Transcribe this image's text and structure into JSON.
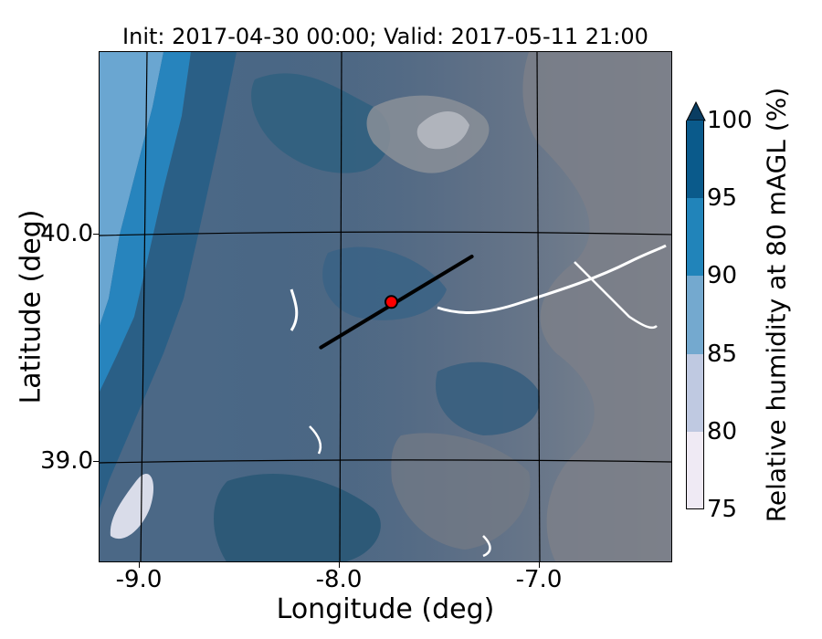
{
  "title": "Init: 2017-04-30 00:00; Valid: 2017-05-11 21:00",
  "axes": {
    "xlabel": "Longitude (deg)",
    "ylabel": "Latitude (deg)",
    "xticks": [
      "-9.0",
      "-8.0",
      "-7.0"
    ],
    "yticks": [
      "40.0",
      "39.0"
    ],
    "xlim": [
      -9.2,
      -6.35
    ],
    "ylim": [
      38.55,
      40.8
    ]
  },
  "colorbar": {
    "label": "Relative humidity at 80 mAGL (%)",
    "ticks": [
      "100",
      "95",
      "90",
      "85",
      "80",
      "75"
    ],
    "levels": [
      75,
      80,
      85,
      90,
      95,
      100
    ],
    "colors": [
      "#efeaf4",
      "#bfc9e1",
      "#74a9cf",
      "#2184ba",
      "#0a5a8b",
      "#0a3d62"
    ],
    "extend": "max"
  },
  "markers": {
    "point": {
      "lon": -7.75,
      "lat": 39.7,
      "color": "#ff0000"
    },
    "transect": {
      "start": [
        -8.1,
        39.5
      ],
      "end": [
        -7.35,
        39.9
      ],
      "color": "#000000"
    }
  },
  "map_colors": {
    "terrain_gray": "#7b7f88",
    "dark_blue": "#2e5a7c",
    "mid_blue": "#3d6a8f",
    "coast_blue": "#2d82ba",
    "ocean_light": "#6aa6d1",
    "low_rh": "#d9dce9"
  }
}
